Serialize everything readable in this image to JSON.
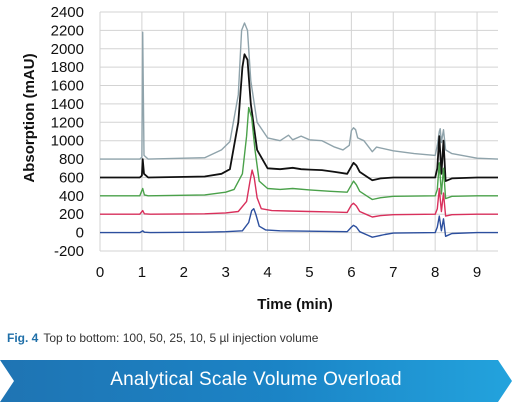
{
  "chart_data": {
    "type": "line",
    "title": "",
    "xlabel": "Time (min)",
    "ylabel": "Absorption (mAU)",
    "xlim": [
      0,
      9.5
    ],
    "ylim": [
      -200,
      2400
    ],
    "x_ticks": [
      "0",
      "1",
      "2",
      "3",
      "4",
      "5",
      "6",
      "7",
      "8",
      "9"
    ],
    "y_ticks": [
      "-200",
      "0",
      "200",
      "400",
      "600",
      "800",
      "1000",
      "1200",
      "1400",
      "1600",
      "1800",
      "2000",
      "2200",
      "2400"
    ],
    "grid": true,
    "legend": "none",
    "series": [
      {
        "color": "#8fa3ab",
        "baseline": 800,
        "points": [
          [
            0,
            800
          ],
          [
            0.95,
            800
          ],
          [
            1.0,
            820
          ],
          [
            1.02,
            2180
          ],
          [
            1.05,
            840
          ],
          [
            1.15,
            800
          ],
          [
            2.5,
            815
          ],
          [
            2.9,
            900
          ],
          [
            3.1,
            990
          ],
          [
            3.3,
            1500
          ],
          [
            3.38,
            2200
          ],
          [
            3.45,
            2280
          ],
          [
            3.52,
            2200
          ],
          [
            3.6,
            1650
          ],
          [
            3.75,
            1200
          ],
          [
            4.0,
            1030
          ],
          [
            4.3,
            1000
          ],
          [
            4.5,
            1060
          ],
          [
            4.6,
            1010
          ],
          [
            4.8,
            1050
          ],
          [
            5.0,
            1010
          ],
          [
            5.3,
            1000
          ],
          [
            5.6,
            930
          ],
          [
            5.8,
            900
          ],
          [
            5.95,
            950
          ],
          [
            6.0,
            1110
          ],
          [
            6.05,
            1140
          ],
          [
            6.1,
            1120
          ],
          [
            6.15,
            1030
          ],
          [
            6.3,
            1000
          ],
          [
            6.4,
            940
          ],
          [
            6.5,
            880
          ],
          [
            6.6,
            930
          ],
          [
            7.0,
            890
          ],
          [
            7.5,
            860
          ],
          [
            8.0,
            840
          ],
          [
            8.05,
            950
          ],
          [
            8.1,
            1100
          ],
          [
            8.12,
            1130
          ],
          [
            8.15,
            980
          ],
          [
            8.2,
            1120
          ],
          [
            8.25,
            900
          ],
          [
            8.4,
            860
          ],
          [
            9.0,
            810
          ],
          [
            9.5,
            800
          ]
        ]
      },
      {
        "color": "#111111",
        "baseline": 600,
        "points": [
          [
            0,
            600
          ],
          [
            0.95,
            600
          ],
          [
            1.0,
            620
          ],
          [
            1.02,
            800
          ],
          [
            1.05,
            640
          ],
          [
            1.15,
            600
          ],
          [
            2.5,
            610
          ],
          [
            2.9,
            640
          ],
          [
            3.1,
            690
          ],
          [
            3.3,
            1200
          ],
          [
            3.4,
            1800
          ],
          [
            3.45,
            1940
          ],
          [
            3.52,
            1880
          ],
          [
            3.6,
            1400
          ],
          [
            3.75,
            900
          ],
          [
            4.0,
            700
          ],
          [
            4.3,
            690
          ],
          [
            4.6,
            705
          ],
          [
            4.8,
            690
          ],
          [
            5.0,
            685
          ],
          [
            5.3,
            680
          ],
          [
            5.6,
            660
          ],
          [
            5.9,
            640
          ],
          [
            6.0,
            720
          ],
          [
            6.05,
            760
          ],
          [
            6.12,
            730
          ],
          [
            6.2,
            660
          ],
          [
            6.4,
            600
          ],
          [
            6.5,
            570
          ],
          [
            6.7,
            590
          ],
          [
            7.0,
            600
          ],
          [
            8.0,
            600
          ],
          [
            8.05,
            700
          ],
          [
            8.1,
            1050
          ],
          [
            8.15,
            640
          ],
          [
            8.2,
            1000
          ],
          [
            8.25,
            560
          ],
          [
            8.4,
            590
          ],
          [
            9.0,
            600
          ],
          [
            9.5,
            600
          ]
        ]
      },
      {
        "color": "#4aa14a",
        "baseline": 400,
        "points": [
          [
            0,
            400
          ],
          [
            0.95,
            400
          ],
          [
            1.02,
            480
          ],
          [
            1.06,
            410
          ],
          [
            1.15,
            400
          ],
          [
            2.5,
            410
          ],
          [
            3.0,
            440
          ],
          [
            3.2,
            470
          ],
          [
            3.4,
            640
          ],
          [
            3.5,
            1050
          ],
          [
            3.55,
            1360
          ],
          [
            3.62,
            1250
          ],
          [
            3.7,
            900
          ],
          [
            3.8,
            560
          ],
          [
            4.0,
            480
          ],
          [
            4.3,
            470
          ],
          [
            4.6,
            480
          ],
          [
            5.0,
            465
          ],
          [
            5.5,
            450
          ],
          [
            5.9,
            440
          ],
          [
            6.0,
            520
          ],
          [
            6.05,
            560
          ],
          [
            6.12,
            520
          ],
          [
            6.2,
            450
          ],
          [
            6.4,
            390
          ],
          [
            6.5,
            360
          ],
          [
            6.7,
            380
          ],
          [
            7.0,
            395
          ],
          [
            8.0,
            400
          ],
          [
            8.05,
            470
          ],
          [
            8.1,
            760
          ],
          [
            8.15,
            420
          ],
          [
            8.2,
            700
          ],
          [
            8.25,
            370
          ],
          [
            8.4,
            395
          ],
          [
            9.0,
            400
          ],
          [
            9.5,
            400
          ]
        ]
      },
      {
        "color": "#d9305c",
        "baseline": 200,
        "points": [
          [
            0,
            200
          ],
          [
            0.95,
            200
          ],
          [
            1.02,
            240
          ],
          [
            1.06,
            205
          ],
          [
            1.2,
            200
          ],
          [
            2.5,
            205
          ],
          [
            3.0,
            215
          ],
          [
            3.3,
            230
          ],
          [
            3.5,
            340
          ],
          [
            3.58,
            560
          ],
          [
            3.63,
            680
          ],
          [
            3.68,
            600
          ],
          [
            3.75,
            380
          ],
          [
            3.85,
            260
          ],
          [
            4.1,
            240
          ],
          [
            4.5,
            235
          ],
          [
            5.0,
            230
          ],
          [
            5.5,
            225
          ],
          [
            5.9,
            220
          ],
          [
            6.0,
            300
          ],
          [
            6.05,
            320
          ],
          [
            6.12,
            290
          ],
          [
            6.2,
            230
          ],
          [
            6.4,
            190
          ],
          [
            6.5,
            170
          ],
          [
            6.7,
            185
          ],
          [
            7.0,
            195
          ],
          [
            8.0,
            200
          ],
          [
            8.05,
            260
          ],
          [
            8.1,
            480
          ],
          [
            8.15,
            230
          ],
          [
            8.2,
            430
          ],
          [
            8.25,
            180
          ],
          [
            8.4,
            195
          ],
          [
            9.0,
            200
          ],
          [
            9.5,
            200
          ]
        ]
      },
      {
        "color": "#2c4f9e",
        "baseline": 0,
        "points": [
          [
            0,
            0
          ],
          [
            0.95,
            0
          ],
          [
            1.02,
            20
          ],
          [
            1.06,
            5
          ],
          [
            1.2,
            0
          ],
          [
            2.5,
            5
          ],
          [
            3.0,
            10
          ],
          [
            3.4,
            20
          ],
          [
            3.55,
            110
          ],
          [
            3.62,
            240
          ],
          [
            3.67,
            260
          ],
          [
            3.72,
            200
          ],
          [
            3.8,
            70
          ],
          [
            3.95,
            30
          ],
          [
            4.3,
            20
          ],
          [
            5.0,
            15
          ],
          [
            5.9,
            10
          ],
          [
            6.0,
            60
          ],
          [
            6.05,
            80
          ],
          [
            6.12,
            60
          ],
          [
            6.2,
            10
          ],
          [
            6.4,
            -30
          ],
          [
            6.5,
            -50
          ],
          [
            6.6,
            -40
          ],
          [
            6.8,
            -20
          ],
          [
            7.0,
            -5
          ],
          [
            8.0,
            0
          ],
          [
            8.05,
            60
          ],
          [
            8.1,
            180
          ],
          [
            8.15,
            20
          ],
          [
            8.2,
            150
          ],
          [
            8.25,
            -40
          ],
          [
            8.4,
            -10
          ],
          [
            9.0,
            0
          ],
          [
            9.5,
            0
          ]
        ]
      }
    ]
  },
  "caption": {
    "figure_label": "Fig. 4",
    "text": "Top to bottom: 100, 50, 25, 10, 5 µl injection volume"
  },
  "banner": {
    "title": "Analytical Scale Volume Overload"
  }
}
